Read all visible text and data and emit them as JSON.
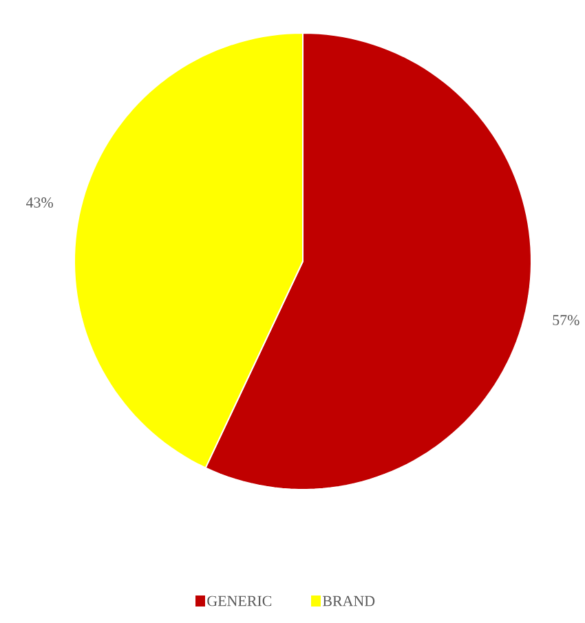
{
  "chart_data": {
    "type": "pie",
    "categories": [
      "GENERIC",
      "BRAND"
    ],
    "values": [
      57,
      43
    ],
    "colors": [
      "#c00000",
      "#ffff00"
    ],
    "value_labels": [
      "57%",
      "43%"
    ],
    "legend": "bottom"
  }
}
